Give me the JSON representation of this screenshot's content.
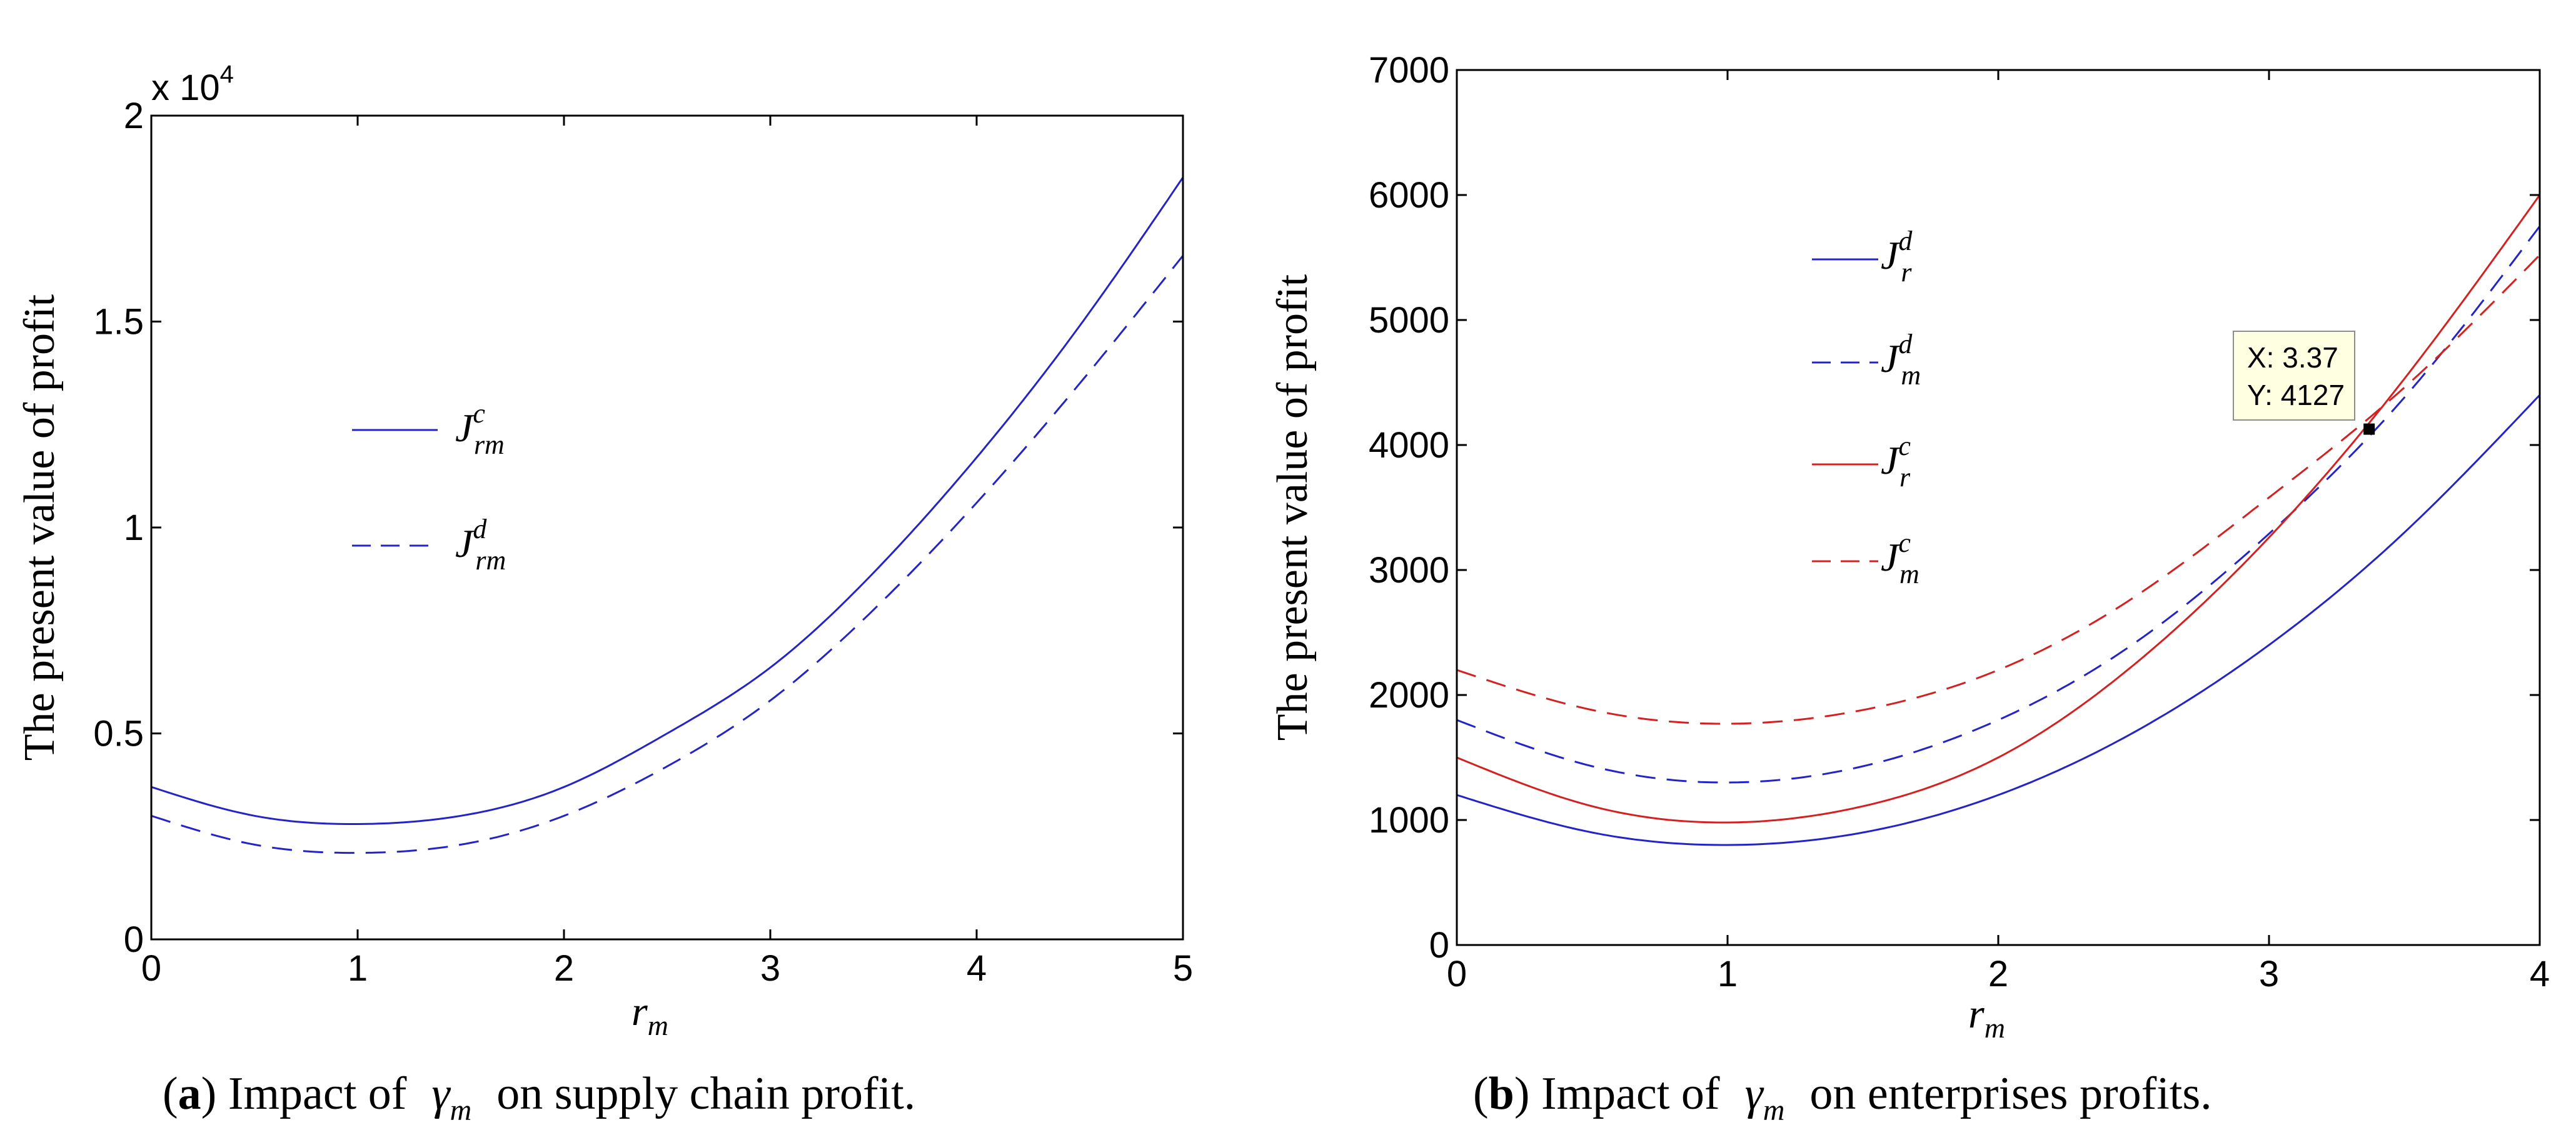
{
  "chart_data": [
    {
      "type": "line",
      "panel_label": "a",
      "caption_text": "Impact of",
      "caption_symbol": "γ",
      "caption_symbol_sub": "m",
      "caption_tail": "on supply chain profit.",
      "ylabel": "The present value of profit",
      "xlabel": "r",
      "xlabel_sub": "m",
      "xlim": [
        0,
        5
      ],
      "ylim": [
        0,
        2
      ],
      "xticks": [
        "0",
        "1",
        "2",
        "3",
        "4",
        "5"
      ],
      "yticks": [
        "0",
        "0.5",
        "1",
        "1.5",
        "2"
      ],
      "multiplier_base": "x 10",
      "multiplier_exp": "4",
      "legend_position": "center-left",
      "series": [
        {
          "name": "J",
          "sup": "c",
          "sub": "rm",
          "color": "#2323c8",
          "dash": "solid",
          "x": [
            0,
            0.5,
            1,
            1.5,
            2,
            2.5,
            3,
            3.5,
            4,
            4.5,
            5
          ],
          "y": [
            0.37,
            0.3,
            0.28,
            0.3,
            0.37,
            0.5,
            0.66,
            0.89,
            1.17,
            1.49,
            1.85
          ]
        },
        {
          "name": "J",
          "sup": "d",
          "sub": "rm",
          "color": "#2323c8",
          "dash": "dashed",
          "x": [
            0,
            0.5,
            1,
            1.5,
            2,
            2.5,
            3,
            3.5,
            4,
            4.5,
            5
          ],
          "y": [
            0.3,
            0.23,
            0.21,
            0.23,
            0.3,
            0.42,
            0.58,
            0.8,
            1.06,
            1.35,
            1.66
          ]
        }
      ]
    },
    {
      "type": "line",
      "panel_label": "b",
      "caption_text": "Impact of",
      "caption_symbol": "γ",
      "caption_symbol_sub": "m",
      "caption_tail": "on enterprises profits.",
      "ylabel": "The present value of profit",
      "xlabel": "r",
      "xlabel_sub": "m",
      "xlim": [
        0,
        4
      ],
      "ylim": [
        0,
        7000
      ],
      "xticks": [
        "0",
        "1",
        "2",
        "3",
        "4"
      ],
      "yticks": [
        "0",
        "1000",
        "2000",
        "3000",
        "4000",
        "5000",
        "6000",
        "7000"
      ],
      "legend_position": "upper-left",
      "datatip": {
        "x_text": "X: 3.37",
        "y_text": "Y: 4127",
        "x": 3.37,
        "y": 4127
      },
      "series": [
        {
          "name": "J",
          "sup": "d",
          "sub": "r",
          "color": "#2323c8",
          "dash": "solid",
          "x": [
            0,
            0.5,
            1,
            1.5,
            2,
            2.5,
            3,
            3.5,
            4
          ],
          "y": [
            1200,
            900,
            800,
            900,
            1200,
            1700,
            2400,
            3300,
            4400
          ]
        },
        {
          "name": "J",
          "sup": "d",
          "sub": "m",
          "color": "#2323c8",
          "dash": "dashed",
          "x": [
            0,
            0.5,
            1,
            1.5,
            2,
            2.5,
            3,
            3.5,
            4
          ],
          "y": [
            1800,
            1430,
            1300,
            1430,
            1800,
            2410,
            3290,
            4380,
            5750
          ]
        },
        {
          "name": "J",
          "sup": "c",
          "sub": "r",
          "color": "#d42020",
          "dash": "solid",
          "x": [
            0,
            0.5,
            1,
            1.5,
            2,
            2.5,
            3,
            3.5,
            4
          ],
          "y": [
            1500,
            1110,
            980,
            1110,
            1500,
            2240,
            3260,
            4530,
            6000
          ]
        },
        {
          "name": "J",
          "sup": "c",
          "sub": "m",
          "color": "#d42020",
          "dash": "dashed",
          "x": [
            0,
            0.5,
            1,
            1.5,
            2,
            2.5,
            3,
            3.5,
            4
          ],
          "y": [
            2200,
            1880,
            1770,
            1880,
            2200,
            2780,
            3580,
            4460,
            5520
          ]
        }
      ]
    }
  ]
}
